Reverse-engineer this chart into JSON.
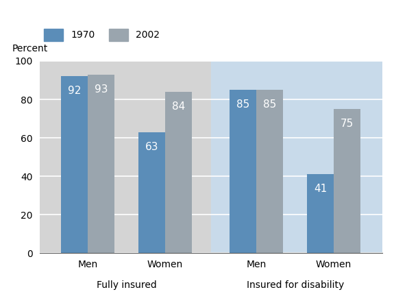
{
  "groups": [
    {
      "label": "Men",
      "category": "Fully insured",
      "val_1970": 92,
      "val_2002": 93
    },
    {
      "label": "Women",
      "category": "Fully insured",
      "val_1970": 63,
      "val_2002": 84
    },
    {
      "label": "Men",
      "category": "Insured for disability",
      "val_1970": 85,
      "val_2002": 85
    },
    {
      "label": "Women",
      "category": "Insured for disability",
      "val_1970": 41,
      "val_2002": 75
    }
  ],
  "color_1970": "#5b8db8",
  "color_2002": "#9aa5ae",
  "bg_left": "#d4d4d4",
  "bg_right": "#c8daea",
  "bar_label_color": "#ffffff",
  "ylabel": "Percent",
  "ylim": [
    0,
    100
  ],
  "yticks": [
    0,
    20,
    40,
    60,
    80,
    100
  ],
  "legend_labels": [
    "1970",
    "2002"
  ],
  "category_labels": [
    "Fully insured",
    "Insured for disability"
  ],
  "bar_width": 0.38,
  "label_fontsize": 10,
  "tick_fontsize": 10,
  "bar_label_fontsize": 11
}
